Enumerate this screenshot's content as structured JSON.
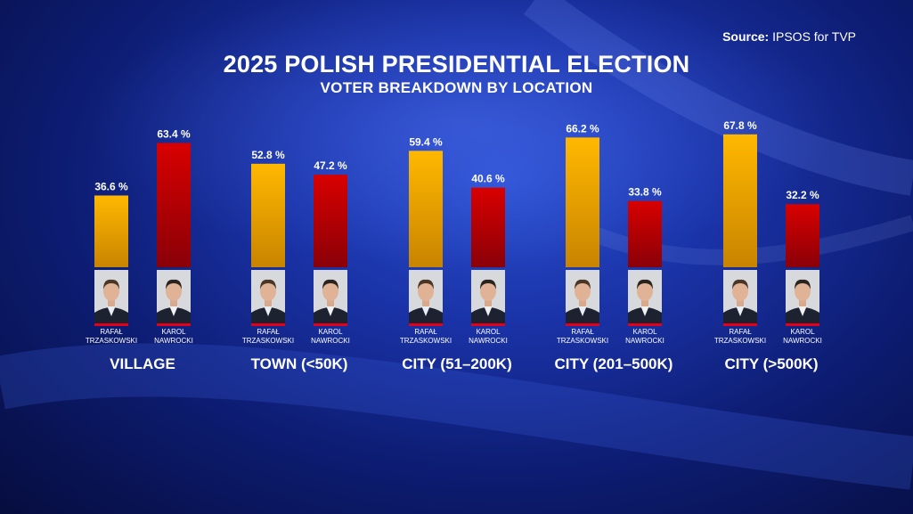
{
  "source": {
    "label": "Source:",
    "text": "IPSOS for TVP"
  },
  "chart_data": {
    "type": "bar",
    "title": "2025 POLISH PRESIDENTIAL ELECTION",
    "subtitle": "VOTER BREAKDOWN BY LOCATION",
    "categories": [
      "VILLAGE",
      "TOWN (<50K)",
      "CITY (51–200K)",
      "CITY (201–500K)",
      "CITY (>500K)"
    ],
    "series": [
      {
        "name_line1": "RAFAŁ",
        "name_line2": "TRZASKOWSKI",
        "color": "#f5b400",
        "values": [
          36.6,
          52.8,
          59.4,
          66.2,
          67.8
        ]
      },
      {
        "name_line1": "KAROL",
        "name_line2": "NAWROCKI",
        "color": "#cc0000",
        "values": [
          63.4,
          47.2,
          40.6,
          33.8,
          32.2
        ]
      }
    ],
    "value_suffix": " %",
    "ylim": [
      0,
      100
    ],
    "grid": false
  }
}
